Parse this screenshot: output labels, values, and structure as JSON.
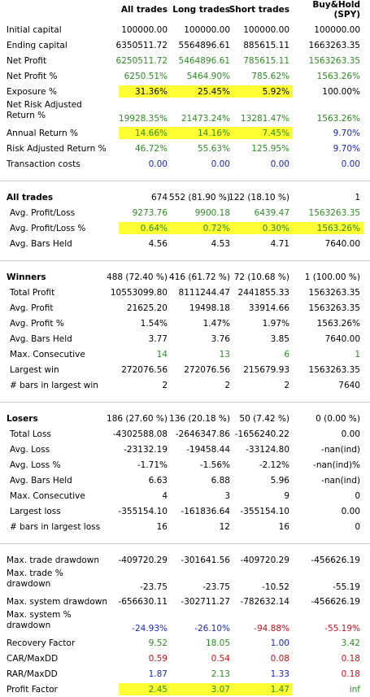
{
  "header": {
    "all": "All trades",
    "long": "Long trades",
    "short": "Short trades",
    "bh1": "Buy&Hold",
    "bh2": "(SPY)"
  },
  "colors": {
    "positive": "#2e8b24",
    "neutral": "#1a26c8",
    "negative": "#c8121a",
    "highlight": "#ffff33"
  },
  "rows": [
    {
      "label": "Initial capital",
      "cells": [
        {
          "t": "100000.00",
          "c": ""
        },
        {
          "t": "100000.00",
          "c": ""
        },
        {
          "t": "100000.00",
          "c": ""
        },
        {
          "t": "100000.00",
          "c": ""
        }
      ]
    },
    {
      "label": "Ending capital",
      "cells": [
        {
          "t": "6350511.72",
          "c": ""
        },
        {
          "t": "5564896.61",
          "c": ""
        },
        {
          "t": "885615.11",
          "c": ""
        },
        {
          "t": "1663263.35",
          "c": ""
        }
      ]
    },
    {
      "label": "Net Profit",
      "cells": [
        {
          "t": "6250511.72",
          "c": "green"
        },
        {
          "t": "5464896.61",
          "c": "green"
        },
        {
          "t": "785615.11",
          "c": "green"
        },
        {
          "t": "1563263.35",
          "c": "green"
        }
      ]
    },
    {
      "label": "Net Profit %",
      "cells": [
        {
          "t": "6250.51%",
          "c": "green"
        },
        {
          "t": "5464.90%",
          "c": "green"
        },
        {
          "t": "785.62%",
          "c": "green"
        },
        {
          "t": "1563.26%",
          "c": "green"
        }
      ]
    },
    {
      "label": "Exposure %",
      "highlight": [
        0,
        2
      ],
      "cells": [
        {
          "t": "31.36%",
          "c": ""
        },
        {
          "t": "25.45%",
          "c": ""
        },
        {
          "t": "5.92%",
          "c": ""
        },
        {
          "t": "100.00%",
          "c": ""
        }
      ]
    },
    {
      "label": "Net Risk Adjusted Return %",
      "multi": true,
      "cells": [
        {
          "t": "19928.35%",
          "c": "green"
        },
        {
          "t": "21473.24%",
          "c": "green"
        },
        {
          "t": "13281.47%",
          "c": "green"
        },
        {
          "t": "1563.26%",
          "c": "green"
        }
      ]
    },
    {
      "label": "Annual Return %",
      "highlight": [
        0,
        2
      ],
      "cells": [
        {
          "t": "14.66%",
          "c": "green"
        },
        {
          "t": "14.16%",
          "c": "green"
        },
        {
          "t": "7.45%",
          "c": "green"
        },
        {
          "t": "9.70%",
          "c": "blue"
        }
      ]
    },
    {
      "label": "Risk Adjusted Return %",
      "cells": [
        {
          "t": "46.72%",
          "c": "green"
        },
        {
          "t": "55.63%",
          "c": "green"
        },
        {
          "t": "125.95%",
          "c": "green"
        },
        {
          "t": "9.70%",
          "c": "blue"
        }
      ]
    },
    {
      "label": "Transaction costs",
      "cells": [
        {
          "t": "0.00",
          "c": "blue"
        },
        {
          "t": "0.00",
          "c": "blue"
        },
        {
          "t": "0.00",
          "c": "blue"
        },
        {
          "t": "0.00",
          "c": "blue"
        }
      ]
    },
    {
      "sep": true
    },
    {
      "label": "All trades",
      "bold": true,
      "cells": [
        {
          "t": "674",
          "c": ""
        },
        {
          "t": "552 (81.90 %)",
          "c": ""
        },
        {
          "t": "122 (18.10 %)",
          "c": ""
        },
        {
          "t": "1",
          "c": ""
        }
      ]
    },
    {
      "label": "Avg. Profit/Loss",
      "sub": true,
      "cells": [
        {
          "t": "9273.76",
          "c": "green"
        },
        {
          "t": "9900.18",
          "c": "green"
        },
        {
          "t": "6439.47",
          "c": "green"
        },
        {
          "t": "1563263.35",
          "c": "green"
        }
      ]
    },
    {
      "label": "Avg. Profit/Loss %",
      "sub": true,
      "highlight": [
        0,
        3
      ],
      "cells": [
        {
          "t": "0.64%",
          "c": "green"
        },
        {
          "t": "0.72%",
          "c": "green"
        },
        {
          "t": "0.30%",
          "c": "green"
        },
        {
          "t": "1563.26%",
          "c": "green"
        }
      ]
    },
    {
      "label": "Avg. Bars Held",
      "sub": true,
      "cells": [
        {
          "t": "4.56",
          "c": ""
        },
        {
          "t": "4.53",
          "c": ""
        },
        {
          "t": "4.71",
          "c": ""
        },
        {
          "t": "7640.00",
          "c": ""
        }
      ]
    },
    {
      "sep": true
    },
    {
      "label": "Winners",
      "bold": true,
      "cells": [
        {
          "t": "488 (72.40 %)",
          "c": ""
        },
        {
          "t": "416 (61.72 %)",
          "c": ""
        },
        {
          "t": "72 (10.68 %)",
          "c": ""
        },
        {
          "t": "1 (100.00 %)",
          "c": ""
        }
      ]
    },
    {
      "label": "Total Profit",
      "sub": true,
      "cells": [
        {
          "t": "10553099.80",
          "c": ""
        },
        {
          "t": "8111244.47",
          "c": ""
        },
        {
          "t": "2441855.33",
          "c": ""
        },
        {
          "t": "1563263.35",
          "c": ""
        }
      ]
    },
    {
      "label": "Avg. Profit",
      "sub": true,
      "cells": [
        {
          "t": "21625.20",
          "c": ""
        },
        {
          "t": "19498.18",
          "c": ""
        },
        {
          "t": "33914.66",
          "c": ""
        },
        {
          "t": "1563263.35",
          "c": ""
        }
      ]
    },
    {
      "label": "Avg. Profit %",
      "sub": true,
      "cells": [
        {
          "t": "1.54%",
          "c": ""
        },
        {
          "t": "1.47%",
          "c": ""
        },
        {
          "t": "1.97%",
          "c": ""
        },
        {
          "t": "1563.26%",
          "c": ""
        }
      ]
    },
    {
      "label": "Avg. Bars Held",
      "sub": true,
      "cells": [
        {
          "t": "3.77",
          "c": ""
        },
        {
          "t": "3.76",
          "c": ""
        },
        {
          "t": "3.85",
          "c": ""
        },
        {
          "t": "7640.00",
          "c": ""
        }
      ]
    },
    {
      "label": "Max. Consecutive",
      "sub": true,
      "cells": [
        {
          "t": "14",
          "c": "green"
        },
        {
          "t": "13",
          "c": "green"
        },
        {
          "t": "6",
          "c": "green"
        },
        {
          "t": "1",
          "c": "green"
        }
      ]
    },
    {
      "label": "Largest win",
      "sub": true,
      "cells": [
        {
          "t": "272076.56",
          "c": ""
        },
        {
          "t": "272076.56",
          "c": ""
        },
        {
          "t": "215679.93",
          "c": ""
        },
        {
          "t": "1563263.35",
          "c": ""
        }
      ]
    },
    {
      "label": "# bars in largest win",
      "sub": true,
      "cells": [
        {
          "t": "2",
          "c": ""
        },
        {
          "t": "2",
          "c": ""
        },
        {
          "t": "2",
          "c": ""
        },
        {
          "t": "7640",
          "c": ""
        }
      ]
    },
    {
      "sep": true
    },
    {
      "label": "Losers",
      "bold": true,
      "cells": [
        {
          "t": "186 (27.60 %)",
          "c": ""
        },
        {
          "t": "136 (20.18 %)",
          "c": ""
        },
        {
          "t": "50 (7.42 %)",
          "c": ""
        },
        {
          "t": "0 (0.00 %)",
          "c": ""
        }
      ]
    },
    {
      "label": "Total Loss",
      "sub": true,
      "cells": [
        {
          "t": "-4302588.08",
          "c": ""
        },
        {
          "t": "-2646347.86",
          "c": ""
        },
        {
          "t": "-1656240.22",
          "c": ""
        },
        {
          "t": "0.00",
          "c": ""
        }
      ]
    },
    {
      "label": "Avg. Loss",
      "sub": true,
      "cells": [
        {
          "t": "-23132.19",
          "c": ""
        },
        {
          "t": "-19458.44",
          "c": ""
        },
        {
          "t": "-33124.80",
          "c": ""
        },
        {
          "t": "-nan(ind)",
          "c": ""
        }
      ]
    },
    {
      "label": "Avg. Loss %",
      "sub": true,
      "cells": [
        {
          "t": "-1.71%",
          "c": ""
        },
        {
          "t": "-1.56%",
          "c": ""
        },
        {
          "t": "-2.12%",
          "c": ""
        },
        {
          "t": "-nan(ind)%",
          "c": ""
        }
      ]
    },
    {
      "label": "Avg. Bars Held",
      "sub": true,
      "cells": [
        {
          "t": "6.63",
          "c": ""
        },
        {
          "t": "6.88",
          "c": ""
        },
        {
          "t": "5.96",
          "c": ""
        },
        {
          "t": "-nan(ind)",
          "c": ""
        }
      ]
    },
    {
      "label": "Max. Consecutive",
      "sub": true,
      "cells": [
        {
          "t": "4",
          "c": ""
        },
        {
          "t": "3",
          "c": ""
        },
        {
          "t": "9",
          "c": ""
        },
        {
          "t": "0",
          "c": ""
        }
      ]
    },
    {
      "label": "Largest loss",
      "sub": true,
      "cells": [
        {
          "t": "-355154.10",
          "c": ""
        },
        {
          "t": "-161836.64",
          "c": ""
        },
        {
          "t": "-355154.10",
          "c": ""
        },
        {
          "t": "0.00",
          "c": ""
        }
      ]
    },
    {
      "label": "# bars in largest loss",
      "sub": true,
      "cells": [
        {
          "t": "16",
          "c": ""
        },
        {
          "t": "12",
          "c": ""
        },
        {
          "t": "16",
          "c": ""
        },
        {
          "t": "0",
          "c": ""
        }
      ]
    },
    {
      "sep": true
    },
    {
      "label": "Max. trade drawdown",
      "cells": [
        {
          "t": "-409720.29",
          "c": ""
        },
        {
          "t": "-301641.56",
          "c": ""
        },
        {
          "t": "-409720.29",
          "c": ""
        },
        {
          "t": "-456626.19",
          "c": ""
        }
      ]
    },
    {
      "label": "Max. trade % drawdown",
      "multi": true,
      "cells": [
        {
          "t": "-23.75",
          "c": ""
        },
        {
          "t": "-23.75",
          "c": ""
        },
        {
          "t": "-10.52",
          "c": ""
        },
        {
          "t": "-55.19",
          "c": ""
        }
      ]
    },
    {
      "label": "Max. system drawdown",
      "cells": [
        {
          "t": "-656630.11",
          "c": ""
        },
        {
          "t": "-302711.27",
          "c": ""
        },
        {
          "t": "-782632.14",
          "c": ""
        },
        {
          "t": "-456626.19",
          "c": ""
        }
      ]
    },
    {
      "label": "Max. system % drawdown",
      "multi": true,
      "cells": [
        {
          "t": "-24.93%",
          "c": "blue"
        },
        {
          "t": "-26.10%",
          "c": "blue"
        },
        {
          "t": "-94.88%",
          "c": "red"
        },
        {
          "t": "-55.19%",
          "c": "red"
        }
      ]
    },
    {
      "label": "Recovery Factor",
      "cells": [
        {
          "t": "9.52",
          "c": "green"
        },
        {
          "t": "18.05",
          "c": "green"
        },
        {
          "t": "1.00",
          "c": "blue"
        },
        {
          "t": "3.42",
          "c": "green"
        }
      ]
    },
    {
      "label": "CAR/MaxDD",
      "cells": [
        {
          "t": "0.59",
          "c": "red"
        },
        {
          "t": "0.54",
          "c": "red"
        },
        {
          "t": "0.08",
          "c": "red"
        },
        {
          "t": "0.18",
          "c": "red"
        }
      ]
    },
    {
      "label": "RAR/MaxDD",
      "cells": [
        {
          "t": "1.87",
          "c": "blue"
        },
        {
          "t": "2.13",
          "c": "green"
        },
        {
          "t": "1.33",
          "c": "blue"
        },
        {
          "t": "0.18",
          "c": "red"
        }
      ]
    },
    {
      "label": "Profit Factor",
      "highlight": [
        0,
        2
      ],
      "cells": [
        {
          "t": "2.45",
          "c": "green"
        },
        {
          "t": "3.07",
          "c": "green"
        },
        {
          "t": "1.47",
          "c": "green"
        },
        {
          "t": "inf",
          "c": "green"
        }
      ]
    }
  ]
}
